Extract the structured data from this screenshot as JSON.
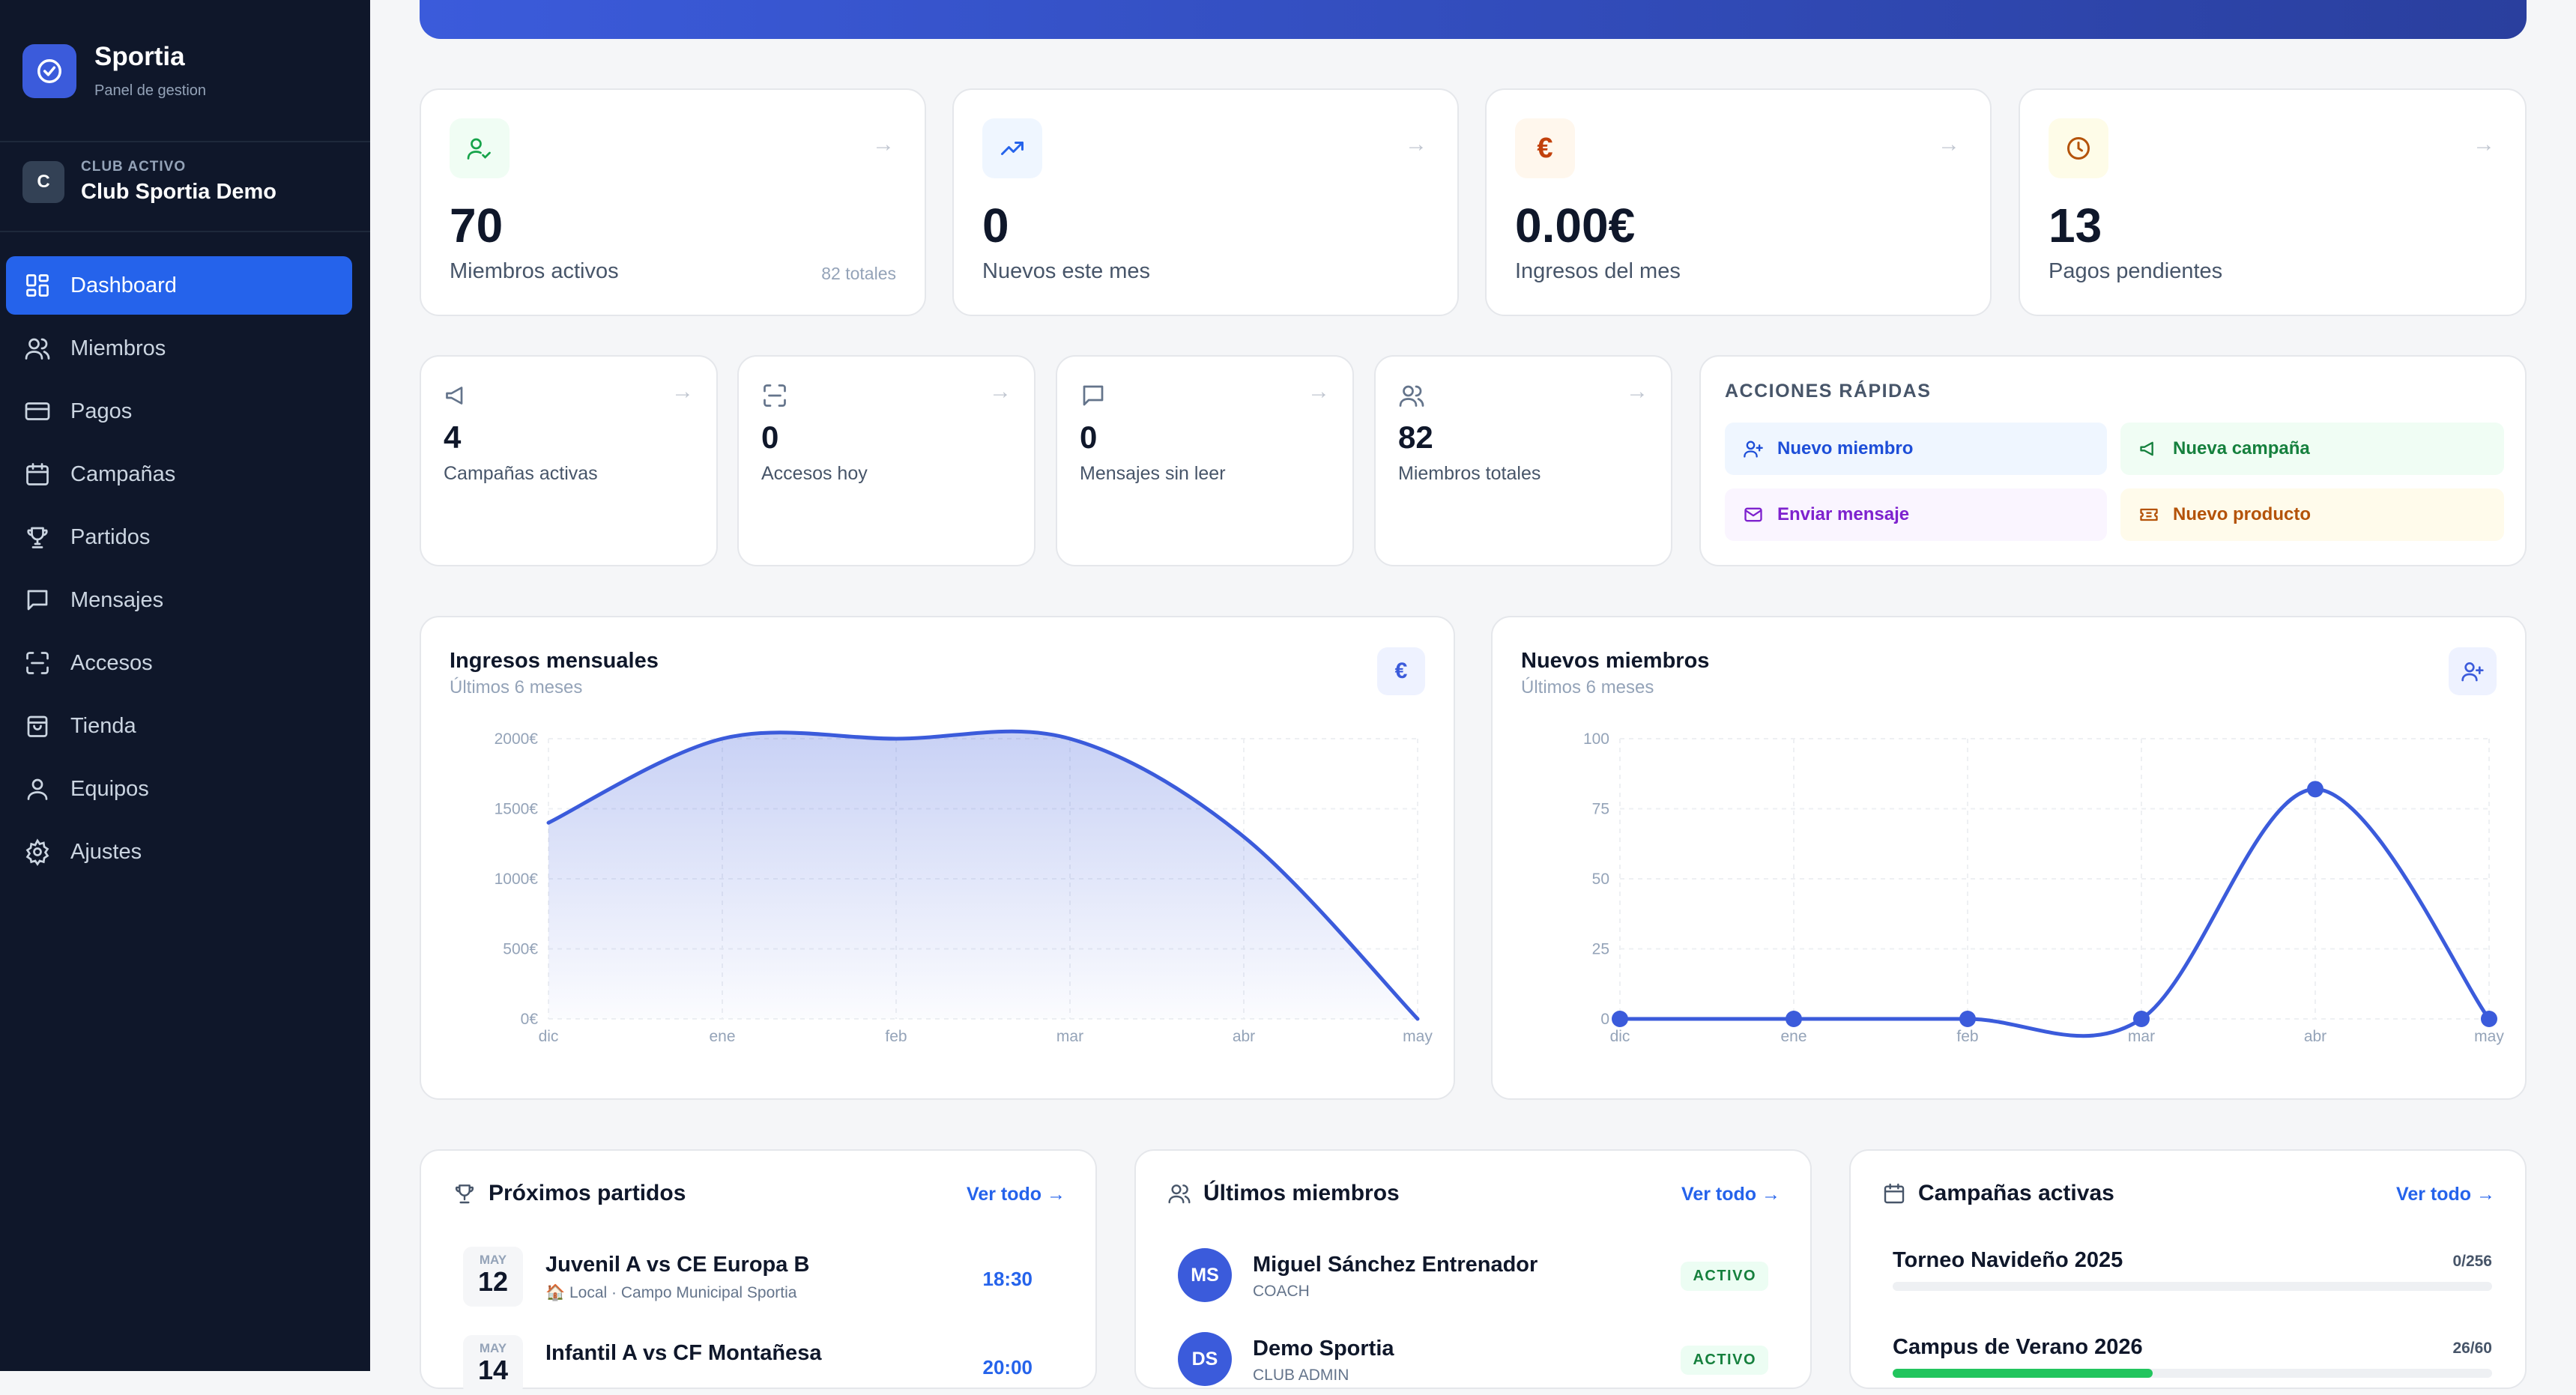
{
  "sidebar": {
    "brand": {
      "name": "Sportia",
      "subtitle": "Panel de gestion"
    },
    "club": {
      "initial": "C",
      "label": "CLUB ACTIVO",
      "name": "Club Sportia Demo"
    },
    "items": [
      {
        "label": "Dashboard",
        "icon": "grid-icon",
        "active": true
      },
      {
        "label": "Miembros",
        "icon": "users-icon"
      },
      {
        "label": "Pagos",
        "icon": "credit-card-icon"
      },
      {
        "label": "Campañas",
        "icon": "calendar-icon"
      },
      {
        "label": "Partidos",
        "icon": "trophy-icon"
      },
      {
        "label": "Mensajes",
        "icon": "message-icon"
      },
      {
        "label": "Accesos",
        "icon": "scan-icon"
      },
      {
        "label": "Tienda",
        "icon": "shopping-bag-icon"
      },
      {
        "label": "Equipos",
        "icon": "user-icon"
      },
      {
        "label": "Ajustes",
        "icon": "gear-icon"
      }
    ]
  },
  "stats": [
    {
      "value": "70",
      "label": "Miembros activos",
      "extra": "82 totales",
      "icon": "user-check-icon",
      "color": "#16a34a",
      "bg": "#f0fdf4"
    },
    {
      "value": "0",
      "label": "Nuevos este mes",
      "icon": "trending-up-icon",
      "color": "#2563eb",
      "bg": "#eff6ff"
    },
    {
      "value": "0.00€",
      "label": "Ingresos del mes",
      "icon": "euro-icon",
      "color": "#c2410c",
      "bg": "#fff7ed"
    },
    {
      "value": "13",
      "label": "Pagos pendientes",
      "icon": "clock-icon",
      "color": "#b45309",
      "bg": "#fefce8"
    }
  ],
  "mini_stats": [
    {
      "value": "4",
      "label": "Campañas activas",
      "icon": "megaphone-icon"
    },
    {
      "value": "0",
      "label": "Accesos hoy",
      "icon": "scan-icon"
    },
    {
      "value": "0",
      "label": "Mensajes sin leer",
      "icon": "message-icon"
    },
    {
      "value": "82",
      "label": "Miembros totales",
      "icon": "users-icon"
    }
  ],
  "quick_actions": {
    "title": "ACCIONES RÁPIDAS",
    "buttons": [
      {
        "label": "Nuevo miembro",
        "icon": "user-plus-icon",
        "color": "#1d4ed8",
        "bg": "#eff6ff"
      },
      {
        "label": "Nueva campaña",
        "icon": "megaphone-icon",
        "color": "#15803d",
        "bg": "#f0fdf4"
      },
      {
        "label": "Enviar mensaje",
        "icon": "mail-icon",
        "color": "#7e22ce",
        "bg": "#faf5ff"
      },
      {
        "label": "Nuevo producto",
        "icon": "ticket-icon",
        "color": "#b45309",
        "bg": "#fffbeb"
      }
    ]
  },
  "chart_data": [
    {
      "type": "area",
      "title": "Ingresos mensuales",
      "subtitle": "Últimos 6 meses",
      "categories": [
        "dic",
        "ene",
        "feb",
        "mar",
        "abr",
        "may"
      ],
      "values": [
        1400,
        2000,
        2000,
        2000,
        1300,
        0
      ],
      "yticks": [
        "0€",
        "500€",
        "1000€",
        "1500€",
        "2000€"
      ],
      "ylim": [
        0,
        2000
      ],
      "grid": true,
      "color": "#3b5bdb"
    },
    {
      "type": "line",
      "title": "Nuevos miembros",
      "subtitle": "Últimos 6 meses",
      "categories": [
        "dic",
        "ene",
        "feb",
        "mar",
        "abr",
        "may"
      ],
      "values": [
        0,
        0,
        0,
        0,
        82,
        0
      ],
      "yticks": [
        "0",
        "25",
        "50",
        "75",
        "100"
      ],
      "ylim": [
        0,
        100
      ],
      "grid": true,
      "color": "#3b5bdb"
    }
  ],
  "matches": {
    "title": "Próximos partidos",
    "link": "Ver todo →",
    "items": [
      {
        "month": "MAY",
        "day": "12",
        "title": "Juvenil A vs CE Europa B",
        "sub": "🏠 Local · Campo Municipal Sportia",
        "time": "18:30"
      },
      {
        "month": "MAY",
        "day": "14",
        "title": "Infantil A vs CF Montañesa",
        "sub": "",
        "time": "20:00"
      }
    ]
  },
  "members": {
    "title": "Últimos miembros",
    "link": "Ver todo →",
    "items": [
      {
        "initials": "MS",
        "name": "Miguel Sánchez Entrenador",
        "role": "COACH",
        "status": "ACTIVO"
      },
      {
        "initials": "DS",
        "name": "Demo Sportia",
        "role": "CLUB ADMIN",
        "status": "ACTIVO"
      }
    ]
  },
  "campaigns": {
    "title": "Campañas activas",
    "link": "Ver todo →",
    "items": [
      {
        "name": "Torneo Navideño 2025",
        "count": "0/256",
        "progress": 0
      },
      {
        "name": "Campus de Verano 2026",
        "count": "26/60",
        "progress": 0.4333
      }
    ]
  }
}
